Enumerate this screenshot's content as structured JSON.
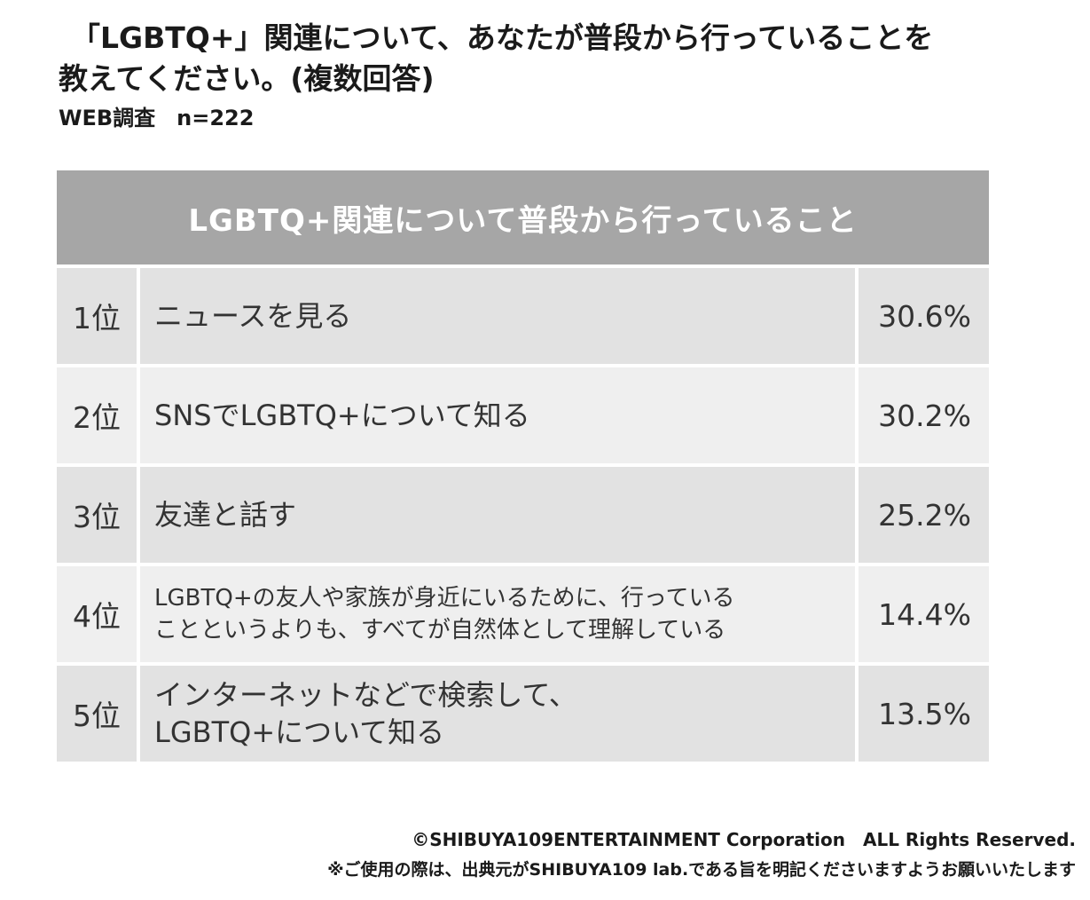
{
  "title": {
    "line1": "「LGBTQ+」関連について、あなたが普段から行っていることを",
    "line2": "教えてください。(複数回答)"
  },
  "subtitle": "WEB調査　n=222",
  "chart_data": {
    "type": "table",
    "header": "LGBTQ+関連について普段から行っていること",
    "rows": [
      {
        "rank": "1位",
        "label": "ニュースを見る",
        "value": "30.6%",
        "percent": 30.6
      },
      {
        "rank": "2位",
        "label": "SNSでLGBTQ+について知る",
        "value": "30.2%",
        "percent": 30.2
      },
      {
        "rank": "3位",
        "label": "友達と話す",
        "value": "25.2%",
        "percent": 25.2
      },
      {
        "rank": "4位",
        "label": "LGBTQ+の友人や家族が身近にいるために、行っている\nことというよりも、すべてが自然体として理解している",
        "value": "14.4%",
        "percent": 14.4
      },
      {
        "rank": "5位",
        "label": "インターネットなどで検索して、\nLGBTQ+について知る",
        "value": "13.5%",
        "percent": 13.5
      }
    ]
  },
  "footer": {
    "copyright": "©SHIBUYA109ENTERTAINMENT Corporation　ALL Rights Reserved.",
    "note": "※ご使用の際は、出典元がSHIBUYA109 lab.である旨を明記くださいますようお願いいたします"
  },
  "colors": {
    "header_bg": "#a6a6a6",
    "row_odd_bg": "#e2e2e2",
    "row_even_bg": "#efefef",
    "text": "#333333"
  }
}
